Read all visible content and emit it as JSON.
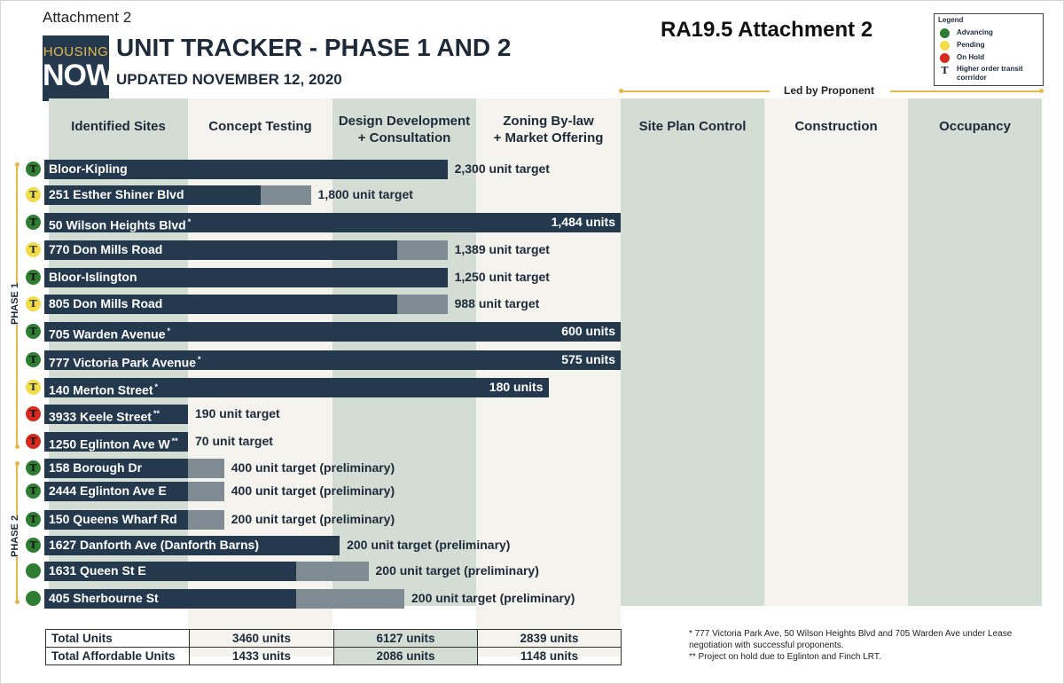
{
  "header": {
    "attachment_label": "Attachment  2",
    "logo_line1": "HOUSING",
    "logo_line2": "NOW.",
    "title": "UNIT TRACKER - PHASE 1 AND 2",
    "updated": "UPDATED NOVEMBER 12, 2020",
    "ra_label": "RA19.5  Attachment 2"
  },
  "legend": {
    "title": "Legend",
    "items": [
      {
        "label": "Advancing",
        "color": "#2e7d32",
        "kind": "dot"
      },
      {
        "label": "Pending",
        "color": "#f2dc4a",
        "kind": "dot"
      },
      {
        "label": "On Hold",
        "color": "#d62a1e",
        "kind": "dot"
      },
      {
        "label": "Higher order transit corrridor",
        "color": "#111111",
        "kind": "transit",
        "glyph": "T"
      }
    ]
  },
  "led_by_label": "Led by Proponent",
  "phases": {
    "phase1": "PHASE 1",
    "phase2": "PHASE 2"
  },
  "colors": {
    "bar_main": "#25394e",
    "bar_extension": "#7f8c94",
    "column_shade": "#d3ddd4",
    "column_light": "#f4f3ed",
    "gold": "#e6b84a"
  },
  "chart_data": {
    "type": "bar",
    "orientation": "horizontal",
    "stages": [
      "Identified Sites",
      "Concept Testing",
      "Design Development + Consultation",
      "Zoning By-law + Market Offering",
      "Site Plan Control",
      "Construction",
      "Occupancy"
    ],
    "stage_lines": [
      [
        "Identified Sites"
      ],
      [
        "Concept Testing"
      ],
      [
        "Design Development",
        "+ Consultation"
      ],
      [
        "Zoning By-law",
        "+ Market Offering"
      ],
      [
        "Site Plan Control"
      ],
      [
        "Construction"
      ],
      [
        "Occupancy"
      ]
    ],
    "projects": [
      {
        "name": "Bloor-Kipling",
        "mark": "",
        "phase": 1,
        "status": "Advancing",
        "transit": true,
        "progress": 2.8,
        "extension": 0,
        "target": "2,300 unit target",
        "label_inside": false
      },
      {
        "name": "251 Esther Shiner Blvd",
        "mark": "",
        "phase": 1,
        "status": "Pending",
        "transit": true,
        "progress": 1.5,
        "extension": 0.35,
        "target": "1,800 unit target",
        "label_inside": false
      },
      {
        "name": "50 Wilson Heights Blvd",
        "mark": "*",
        "phase": 1,
        "status": "Advancing",
        "transit": true,
        "progress": 4.0,
        "extension": 0,
        "target": "1,484 units",
        "label_inside": true
      },
      {
        "name": "770 Don Mills Road",
        "mark": "",
        "phase": 1,
        "status": "Pending",
        "transit": true,
        "progress": 2.45,
        "extension": 0.35,
        "target": "1,389 unit target",
        "label_inside": false
      },
      {
        "name": "Bloor-Islington",
        "mark": "",
        "phase": 1,
        "status": "Advancing",
        "transit": true,
        "progress": 2.8,
        "extension": 0,
        "target": "1,250 unit target",
        "label_inside": false
      },
      {
        "name": "805 Don Mills Road",
        "mark": "",
        "phase": 1,
        "status": "Pending",
        "transit": true,
        "progress": 2.45,
        "extension": 0.35,
        "target": "988 unit target",
        "label_inside": false
      },
      {
        "name": "705 Warden Avenue",
        "mark": "*",
        "phase": 1,
        "status": "Advancing",
        "transit": true,
        "progress": 4.0,
        "extension": 0,
        "target": "600 units",
        "label_inside": true
      },
      {
        "name": "777 Victoria Park Avenue",
        "mark": "*",
        "phase": 1,
        "status": "Advancing",
        "transit": true,
        "progress": 4.0,
        "extension": 0,
        "target": "575 units",
        "label_inside": true
      },
      {
        "name": "140 Merton Street",
        "mark": "*",
        "phase": 1,
        "status": "Pending",
        "transit": true,
        "progress": 3.5,
        "extension": 0,
        "target": "180 units",
        "label_inside": true
      },
      {
        "name": "3933 Keele Street",
        "mark": "**",
        "phase": 1,
        "status": "On Hold",
        "transit": true,
        "progress": 1.0,
        "extension": 0,
        "target": "190 unit target",
        "label_inside": false
      },
      {
        "name": "1250 Eglinton Ave W",
        "mark": "**",
        "phase": 1,
        "status": "On Hold",
        "transit": true,
        "progress": 1.0,
        "extension": 0,
        "target": "70 unit target",
        "label_inside": false
      },
      {
        "name": "158 Borough Dr",
        "mark": "",
        "phase": 2,
        "status": "Advancing",
        "transit": true,
        "progress": 1.0,
        "extension": 0.25,
        "target": "400 unit target (preliminary)",
        "label_inside": false
      },
      {
        "name": "2444 Eglinton Ave E",
        "mark": "",
        "phase": 2,
        "status": "Advancing",
        "transit": true,
        "progress": 1.0,
        "extension": 0.25,
        "target": "400 unit target (preliminary)",
        "label_inside": false
      },
      {
        "name": "150 Queens Wharf Rd",
        "mark": "",
        "phase": 2,
        "status": "Advancing",
        "transit": true,
        "progress": 1.0,
        "extension": 0.25,
        "target": "200 unit target (preliminary)",
        "label_inside": false
      },
      {
        "name": "1627 Danforth Ave (Danforth Barns)",
        "mark": "",
        "phase": 2,
        "status": "Advancing",
        "transit": true,
        "progress": 2.05,
        "extension": 0,
        "target": "200 unit target (preliminary)",
        "label_inside": false
      },
      {
        "name": "1631 Queen St E",
        "mark": "",
        "phase": 2,
        "status": "Advancing",
        "transit": false,
        "progress": 1.75,
        "extension": 0.5,
        "target": "200 unit target (preliminary)",
        "label_inside": false
      },
      {
        "name": "405 Sherbourne St",
        "mark": "",
        "phase": 2,
        "status": "Advancing",
        "transit": false,
        "progress": 1.75,
        "extension": 0.75,
        "target": "200 unit target (preliminary)",
        "label_inside": false
      }
    ]
  },
  "totals": {
    "rows": [
      {
        "label": "Total Units",
        "values": [
          "3460 units",
          "6127 units",
          "2839 units"
        ]
      },
      {
        "label": "Total Affordable Units",
        "values": [
          "1433 units",
          "2086 units",
          "1148 units"
        ]
      }
    ]
  },
  "footnotes": [
    "* 777 Victoria Park Ave, 50 Wilson Heights Blvd and 705 Warden Ave under Lease negotiation with successful proponents.",
    "** Project on hold due to Eglinton and Finch LRT."
  ]
}
